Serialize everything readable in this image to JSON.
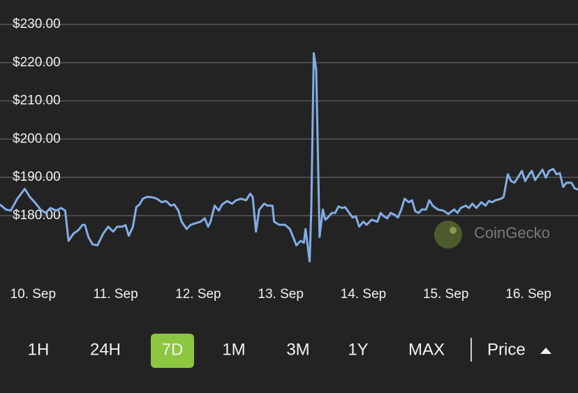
{
  "chart_data": {
    "type": "line",
    "x": [
      9.6,
      9.67,
      9.73,
      9.81,
      9.9,
      9.96,
      10.02,
      10.09,
      10.15,
      10.21,
      10.28,
      10.34,
      10.39,
      10.43,
      10.49,
      10.55,
      10.6,
      10.63,
      10.67,
      10.72,
      10.78,
      10.85,
      10.91,
      10.97,
      11.02,
      11.08,
      11.12,
      11.16,
      11.21,
      11.25,
      11.29,
      11.33,
      11.38,
      11.44,
      11.5,
      11.56,
      11.61,
      11.67,
      11.71,
      11.76,
      11.8,
      11.86,
      11.91,
      11.97,
      12.03,
      12.08,
      12.12,
      12.15,
      12.2,
      12.25,
      12.29,
      12.35,
      12.41,
      12.46,
      12.52,
      12.58,
      12.63,
      12.66,
      12.7,
      12.74,
      12.8,
      12.84,
      12.9,
      12.92,
      12.98,
      13.05,
      13.11,
      13.15,
      13.19,
      13.24,
      13.28,
      13.3,
      13.35,
      13.37,
      13.4,
      13.43,
      13.47,
      13.51,
      13.54,
      13.57,
      13.62,
      13.66,
      13.7,
      13.74,
      13.78,
      13.83,
      13.87,
      13.91,
      13.95,
      14.0,
      14.04,
      14.1,
      14.17,
      14.21,
      14.25,
      14.29,
      14.33,
      14.38,
      14.42,
      14.46,
      14.5,
      14.55,
      14.59,
      14.63,
      14.67,
      14.71,
      14.76,
      14.8,
      14.84,
      14.9,
      14.97,
      15.03,
      15.1,
      15.14,
      15.18,
      15.24,
      15.28,
      15.32,
      15.37,
      15.43,
      15.48,
      15.52,
      15.56,
      15.6,
      15.67,
      15.7,
      15.75,
      15.79,
      15.83,
      15.87,
      15.92,
      15.96,
      16.01,
      16.04,
      16.08,
      16.13,
      16.17,
      16.21,
      16.25,
      16.3,
      16.34,
      16.38,
      16.42,
      16.46,
      16.52,
      16.56,
      16.6
    ],
    "values": [
      182.9,
      181.6,
      181.3,
      184.4,
      187.0,
      184.9,
      183.5,
      181.6,
      180.7,
      182.0,
      181.3,
      182.0,
      181.3,
      173.4,
      175.3,
      176.2,
      177.6,
      177.5,
      174.4,
      172.5,
      172.2,
      175.3,
      177.1,
      175.8,
      177.1,
      177.1,
      177.5,
      174.7,
      177.1,
      182.2,
      182.9,
      184.4,
      184.9,
      184.8,
      184.4,
      183.5,
      183.8,
      182.6,
      182.9,
      181.3,
      178.4,
      176.5,
      177.6,
      178.0,
      178.4,
      179.3,
      177.1,
      178.4,
      182.6,
      181.3,
      182.9,
      183.8,
      183.1,
      184.0,
      184.4,
      184.0,
      185.7,
      184.9,
      175.8,
      181.6,
      183.1,
      182.6,
      182.6,
      178.4,
      177.6,
      177.6,
      176.5,
      174.4,
      172.2,
      173.4,
      172.9,
      176.5,
      168.0,
      181.6,
      222.5,
      218.1,
      174.4,
      181.6,
      178.9,
      179.5,
      180.7,
      180.7,
      182.4,
      182.0,
      182.2,
      180.7,
      179.5,
      179.8,
      177.1,
      178.4,
      177.6,
      178.9,
      178.4,
      180.7,
      179.8,
      179.3,
      180.7,
      180.2,
      179.5,
      181.6,
      184.4,
      183.5,
      184.0,
      181.1,
      180.7,
      181.6,
      181.6,
      184.0,
      182.6,
      181.6,
      181.3,
      180.4,
      181.6,
      180.7,
      182.0,
      182.6,
      182.0,
      183.1,
      182.0,
      183.5,
      182.6,
      183.8,
      183.5,
      184.0,
      184.4,
      184.9,
      190.8,
      189.0,
      188.6,
      189.9,
      191.7,
      189.0,
      190.8,
      191.7,
      189.3,
      190.8,
      192.0,
      189.9,
      191.7,
      192.2,
      190.8,
      191.1,
      187.5,
      188.6,
      188.6,
      187.1,
      186.8
    ],
    "color": "#82aee6",
    "xlim": [
      9.6,
      16.6
    ],
    "ylim": [
      167,
      236.4
    ],
    "xticks": [
      {
        "value": 10,
        "label": "10. Sep"
      },
      {
        "value": 11,
        "label": "11. Sep"
      },
      {
        "value": 12,
        "label": "12. Sep"
      },
      {
        "value": 13,
        "label": "13. Sep"
      },
      {
        "value": 14,
        "label": "14. Sep"
      },
      {
        "value": 15,
        "label": "15. Sep"
      },
      {
        "value": 16,
        "label": "16. Sep"
      }
    ],
    "yticks": [
      {
        "value": 180,
        "label": "$180.00"
      },
      {
        "value": 190,
        "label": "$190.00"
      },
      {
        "value": 200,
        "label": "$200.00"
      },
      {
        "value": 210,
        "label": "$210.00"
      },
      {
        "value": 220,
        "label": "$220.00"
      },
      {
        "value": 230,
        "label": "$230.00"
      }
    ],
    "grid": true
  },
  "ui": {
    "ranges": [
      "1H",
      "24H",
      "7D",
      "1M",
      "3M",
      "1Y",
      "MAX"
    ],
    "active_range": 2,
    "metric": "Price",
    "watermark": "CoinGecko"
  }
}
